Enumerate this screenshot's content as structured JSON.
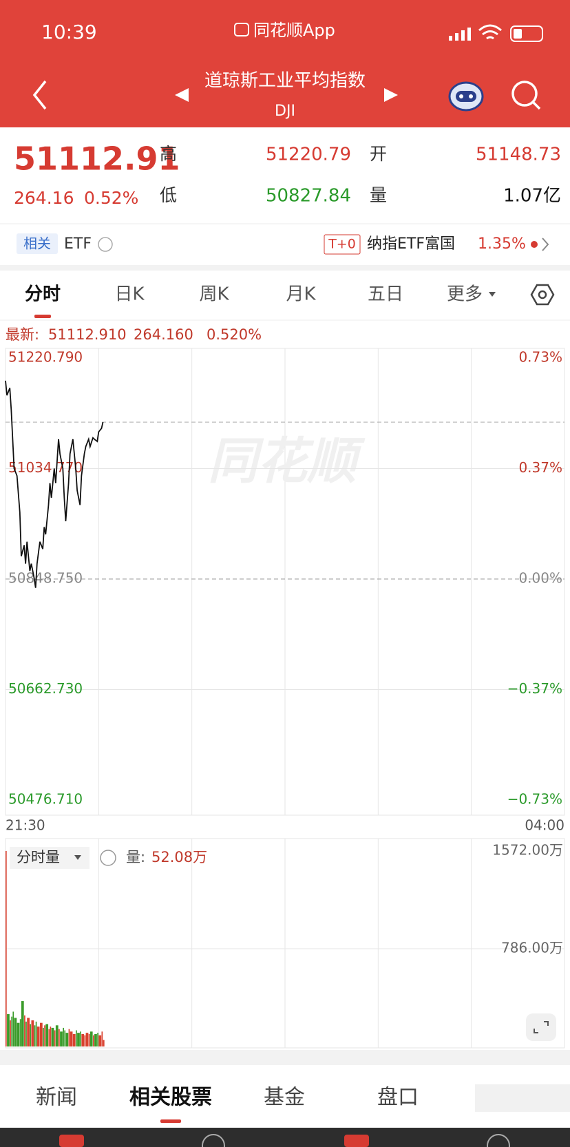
{
  "status_bar": {
    "time": "10:39",
    "app": "同花顺App"
  },
  "header": {
    "title": "道琼斯工业平均指数",
    "code": "DJI"
  },
  "quote": {
    "price": "51112.91",
    "change": "264.16",
    "change_pct": "0.52%",
    "high_label": "高",
    "high": "51220.79",
    "open_label": "开",
    "open": "51148.73",
    "low_label": "低",
    "low": "50827.84",
    "volume_label": "量",
    "volume": "1.07亿"
  },
  "related": {
    "tag": "相关",
    "etf": "ETF",
    "t0": "T+0",
    "fund": "纳指ETF富国",
    "fund_pct": "1.35%"
  },
  "tabs": [
    "分时",
    "日K",
    "周K",
    "月K",
    "五日",
    "更多"
  ],
  "latest": {
    "label": "最新:",
    "price": "51112.910",
    "change": "264.160",
    "pct": "0.520%"
  },
  "price_chart": {
    "type": "line",
    "watermark": "同花顺",
    "color": "#111111",
    "xlim": [
      0,
      390
    ],
    "xticks": [
      {
        "value": 0,
        "label": "21:30"
      },
      {
        "value": 390,
        "label": "04:00"
      }
    ],
    "ylim": [
      50476.71,
      51220.79
    ],
    "yticks": [
      {
        "value": 51220.79,
        "label": "51220.790"
      },
      {
        "value": 51034.77,
        "label": "51034.770"
      },
      {
        "value": 50848.75,
        "label": "50848.750"
      },
      {
        "value": 50662.73,
        "label": "50662.730"
      },
      {
        "value": 50476.71,
        "label": "50476.710"
      }
    ],
    "pct_ticks": [
      "0.73%",
      "0.37%",
      "0.00%",
      "−0.37%",
      "−0.73%"
    ],
    "base": 50848.75,
    "x": [
      0,
      1,
      3,
      4,
      5,
      6,
      8,
      10,
      11,
      13,
      14,
      15,
      17,
      18,
      20,
      21,
      22,
      24,
      26,
      27,
      28,
      30,
      31,
      32,
      34,
      35,
      37,
      38,
      40,
      41,
      42,
      44,
      45,
      47,
      49,
      50,
      52,
      53,
      55,
      56,
      58,
      59,
      61,
      62,
      64,
      65,
      67,
      68
    ],
    "values": [
      51182.6,
      51158.0,
      51170.3,
      51133.3,
      51084.1,
      51034.8,
      51022.5,
      50960.9,
      50887.0,
      50905.4,
      50874.6,
      50911.6,
      50862.3,
      50874.6,
      50850.0,
      50834.0,
      50874.6,
      50911.6,
      50899.3,
      50936.2,
      50923.9,
      50973.2,
      51010.1,
      50985.5,
      51034.8,
      51010.1,
      51084.1,
      51059.4,
      51034.8,
      50985.5,
      50946.1,
      51010.1,
      51059.4,
      51084.1,
      51034.8,
      50997.8,
      50973.2,
      51022.5,
      51059.4,
      51071.7,
      51084.1,
      51071.7,
      51086.5,
      51084.1,
      51080.4,
      51096.4,
      51102.5,
      51112.9
    ]
  },
  "volume_chart": {
    "type": "bar",
    "selector": "分时量",
    "label": "量:",
    "current": "52.08万",
    "up_color": "#d9412f",
    "down_color": "#3a9b2a",
    "ylim": [
      0,
      1572
    ],
    "yticks": [
      {
        "value": 1572,
        "label": "1572.00万"
      },
      {
        "value": 786,
        "label": "786.00万"
      }
    ],
    "values": [
      1572,
      260,
      210,
      240,
      280,
      230,
      190,
      220,
      365,
      250,
      200,
      230,
      180,
      210,
      170,
      200,
      160,
      190,
      150,
      170,
      180,
      140,
      160,
      150,
      130,
      170,
      140,
      120,
      150,
      130,
      110,
      140,
      120,
      100,
      130,
      110,
      120,
      100,
      90,
      110,
      100,
      120,
      90,
      100,
      110,
      90,
      120,
      52.08
    ]
  },
  "bottom_tabs": [
    "新闻",
    "相关股票",
    "基金",
    "盘口"
  ]
}
